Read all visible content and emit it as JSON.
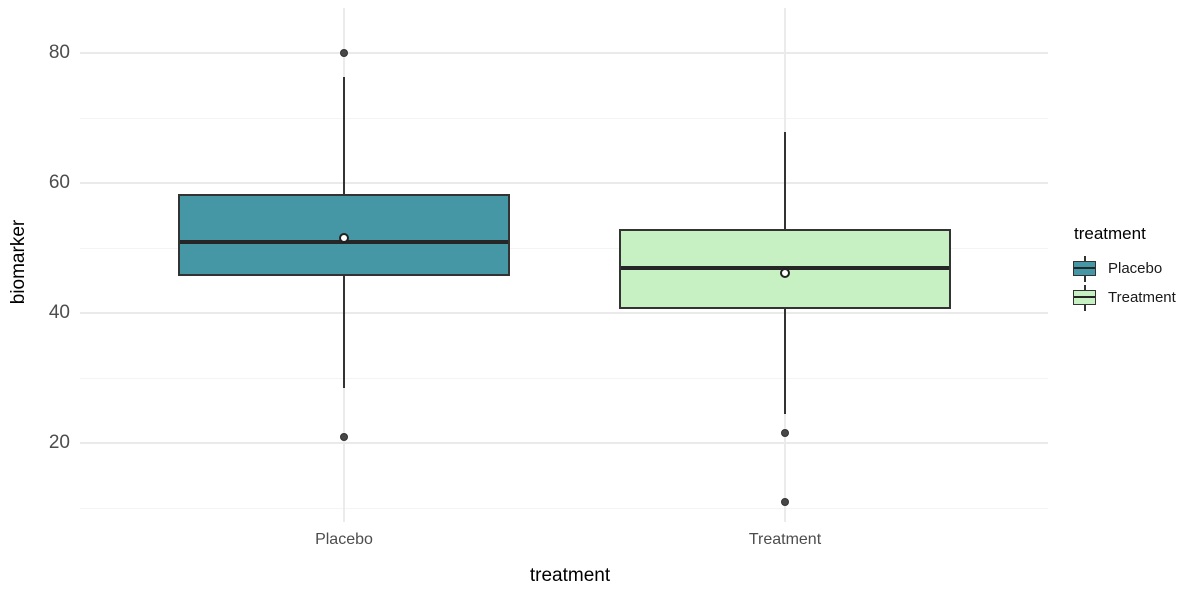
{
  "figure": {
    "background": "#ffffff",
    "grid_major_color": "#eaeaea",
    "grid_minor_color": "#f4f4f4",
    "box_border_color": "#333333",
    "median_color": "#262626",
    "outlier_color": "#474747",
    "mean_marker": "white-circle",
    "tick_label_color": "#4d4d4d"
  },
  "chart_data": {
    "type": "boxplot",
    "title": "",
    "xlabel": "treatment",
    "ylabel": "biomarker",
    "categories": [
      "Placebo",
      "Treatment"
    ],
    "y_ticks": [
      20,
      40,
      60,
      80
    ],
    "y_minor_gridlines": [
      10,
      30,
      50,
      70
    ],
    "ylim": [
      7.8,
      87
    ],
    "grid": "on",
    "series": [
      {
        "name": "Placebo",
        "fill": "#4597a6",
        "whisker_low": 28.5,
        "q1": 45.7,
        "median": 51,
        "q3": 58.3,
        "whisker_high": 76.3,
        "mean": 51.5,
        "outliers": [
          80,
          21
        ]
      },
      {
        "name": "Treatment",
        "fill": "#c7f0c3",
        "whisker_low": 24.5,
        "q1": 40.6,
        "median": 47,
        "q3": 52.9,
        "whisker_high": 67.8,
        "mean": 46.2,
        "outliers": [
          21.5,
          11
        ]
      }
    ],
    "legend": {
      "title": "treatment",
      "position": "right",
      "entries": [
        {
          "label": "Placebo",
          "color": "#4597a6"
        },
        {
          "label": "Treatment",
          "color": "#c7f0c3"
        }
      ]
    }
  }
}
